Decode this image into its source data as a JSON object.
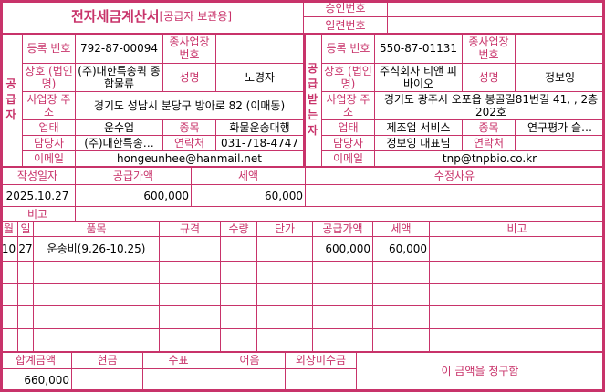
{
  "title": {
    "main": "전자세금계산서",
    "sub": "[공급자 보관용]"
  },
  "approval": {
    "approval_no_label": "승인번호",
    "approval_no": "",
    "serial_no_label": "일련번호",
    "serial_no": ""
  },
  "labels": {
    "reg_no": "등록 번호",
    "sub_biz_no": "종사업장 번호",
    "company": "상호 (법인명)",
    "ceo": "성명",
    "address": "사업장 주소",
    "biz_type": "업태",
    "biz_item": "종목",
    "manager": "담당자",
    "contact": "연락처",
    "email": "이메일"
  },
  "supplier": {
    "side_label": [
      "공",
      "급",
      "자"
    ],
    "reg_no": "792-87-00094",
    "sub_biz_no": "",
    "company": "(주)대한특송퀵 종합물류",
    "ceo": "노경자",
    "address": "경기도 성남시 분당구 방아로 82 (이매동)",
    "biz_type": "운수업",
    "biz_item": "화물운송대행",
    "manager": "(주)대한특송…",
    "contact": "031-718-4747",
    "email": "hongeunhee@hanmail.net"
  },
  "receiver": {
    "side_label": [
      "공",
      "급",
      "받",
      "는",
      "자"
    ],
    "reg_no": "550-87-01131",
    "sub_biz_no": "",
    "company": "주식회사 티앤 피바이오",
    "ceo": "정보잉",
    "address": "경기도 광주시 오포읍 봉골길81번길 41, , 2층 202호",
    "biz_type": "제조업 서비스",
    "biz_item": "연구평가 슬…",
    "manager": "정보잉  대표님",
    "contact": "",
    "email": "tnp@tnpbio.co.kr"
  },
  "summary": {
    "headers": [
      "작성일자",
      "공급가액",
      "세액",
      "수정사유"
    ],
    "date": "2025.10.27",
    "supply_amount": "600,000",
    "tax": "60,000",
    "reason": "",
    "note_label": "비고",
    "note": ""
  },
  "items": {
    "headers": [
      "월",
      "일",
      "품목",
      "규격",
      "수량",
      "단가",
      "공급가액",
      "세액",
      "비고"
    ],
    "rows": [
      [
        "10",
        "27",
        "운송비(9.26-10.25)",
        "",
        "",
        "",
        "600,000",
        "60,000",
        ""
      ]
    ]
  },
  "totals": {
    "headers": [
      "합계금액",
      "현금",
      "수표",
      "어음",
      "외상미수금"
    ],
    "values": [
      "660,000",
      "",
      "",
      "",
      ""
    ],
    "claim_text": "이 금액을 청구함"
  },
  "colors": {
    "accent": "#c8336a"
  }
}
